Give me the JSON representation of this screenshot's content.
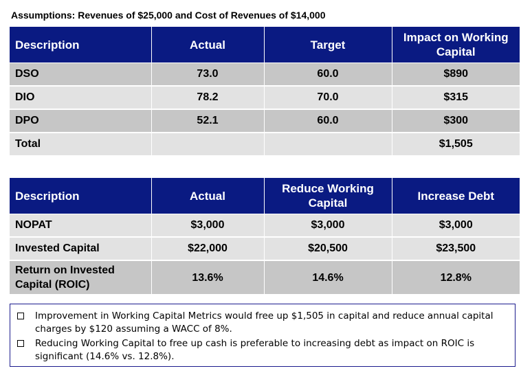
{
  "assumptions": "Assumptions: Revenues of $25,000 and Cost of Revenues of $14,000",
  "table1": {
    "headers": [
      "Description",
      "Actual",
      "Target",
      "Impact on Working Capital"
    ],
    "rows": [
      [
        "DSO",
        "73.0",
        "60.0",
        "$890"
      ],
      [
        "DIO",
        "78.2",
        "70.0",
        "$315"
      ],
      [
        "DPO",
        "52.1",
        "60.0",
        "$300"
      ],
      [
        "Total",
        "",
        "",
        "$1,505"
      ]
    ]
  },
  "table2": {
    "headers": [
      "Description",
      "Actual",
      "Reduce Working Capital",
      "Increase Debt"
    ],
    "rows": [
      [
        "NOPAT",
        "$3,000",
        "$3,000",
        "$3,000"
      ],
      [
        "Invested Capital",
        "$22,000",
        "$20,500",
        "$23,500"
      ],
      [
        "Return on Invested Capital (ROIC)",
        "13.6%",
        "14.6%",
        "12.8%"
      ]
    ]
  },
  "notes": [
    "Improvement in Working Capital Metrics would free up $1,505 in capital and reduce annual capital charges by $120 assuming a WACC of 8%.",
    "Reducing Working Capital to free up cash is preferable to increasing debt as impact on ROIC is significant (14.6% vs. 12.8%)."
  ],
  "colors": {
    "header_bg": "#0a1a82",
    "row_gray": "#c6c6c6",
    "row_light": "#e2e2e2"
  }
}
